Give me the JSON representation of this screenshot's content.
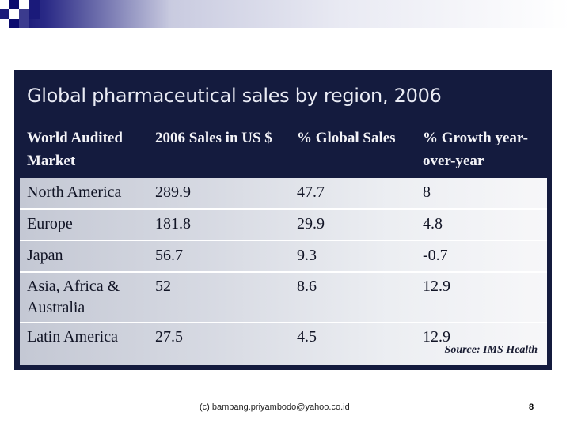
{
  "figure": {
    "title": "Global pharmaceutical sales by region, 2006",
    "columns": [
      "World Audited Market",
      "2006 Sales in US $",
      "% Global Sales",
      "% Growth year-over-year"
    ],
    "rows": [
      {
        "market": "North America",
        "sales": "289.9",
        "global": "47.7",
        "growth": "8"
      },
      {
        "market": "Europe",
        "sales": "181.8",
        "global": "29.9",
        "growth": "4.8"
      },
      {
        "market": "Japan",
        "sales": "56.7",
        "global": "9.3",
        "growth": "-0.7"
      },
      {
        "market": "Asia, Africa & Australia",
        "sales": "52",
        "global": "8.6",
        "growth": "12.9"
      },
      {
        "market": "Latin America",
        "sales": "27.5",
        "global": "4.5",
        "growth": "12.9"
      }
    ],
    "source": "Source: IMS Health"
  },
  "footer": {
    "email": "(c) bambang.priyambodo@yahoo.co.id",
    "page_number": "8"
  },
  "colors": {
    "header_bg": "#141b3e",
    "brand_blue": "#0b0b6e"
  }
}
